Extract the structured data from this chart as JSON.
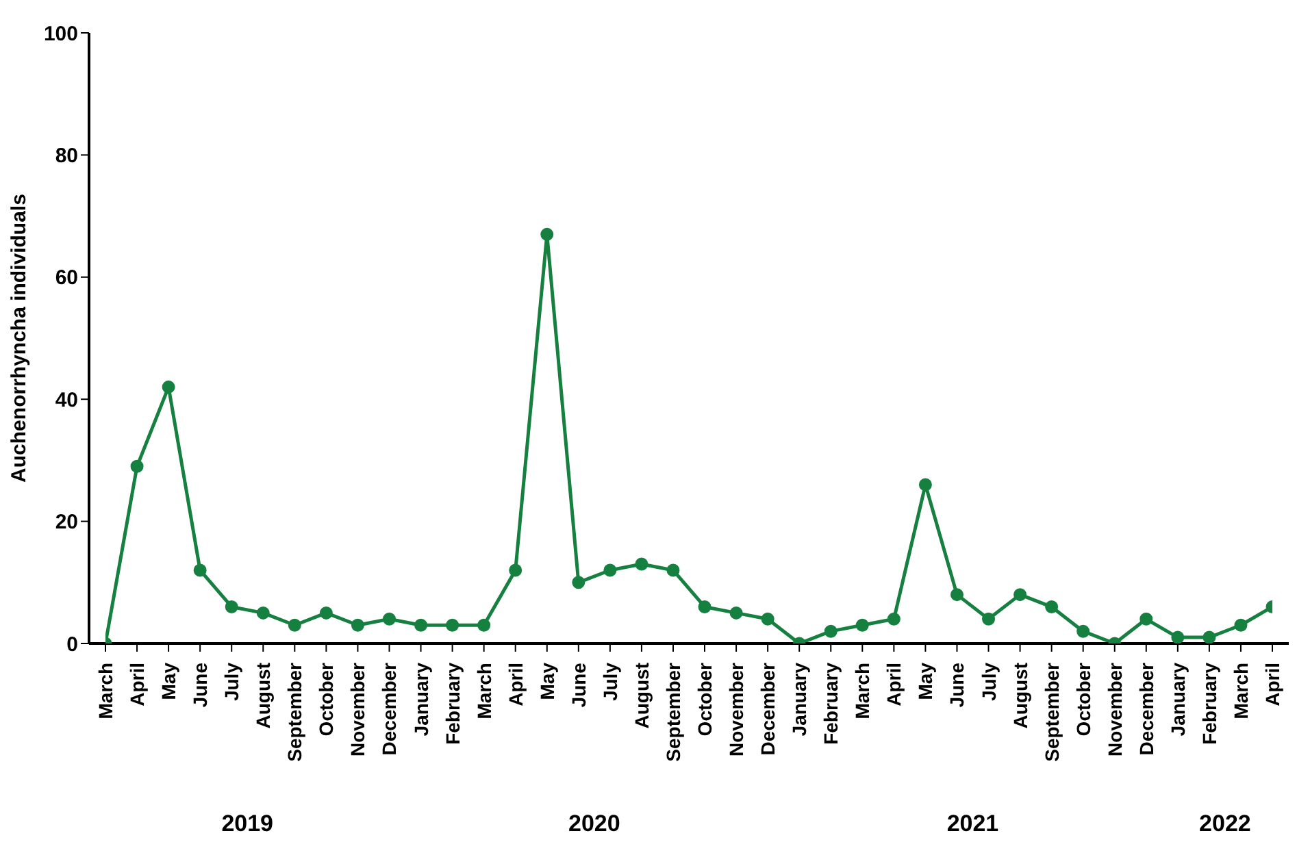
{
  "chart_data": {
    "type": "line",
    "ylabel": "Auchenorrhyncha individuals",
    "categories": [
      "March",
      "April",
      "May",
      "June",
      "July",
      "August",
      "September",
      "October",
      "November",
      "December",
      "January",
      "February",
      "March",
      "April",
      "May",
      "June",
      "July",
      "August",
      "September",
      "October",
      "November",
      "December",
      "January",
      "February",
      "March",
      "April",
      "May",
      "June",
      "July",
      "August",
      "September",
      "October",
      "November",
      "December",
      "January",
      "February",
      "March",
      "April"
    ],
    "series": [
      {
        "color": "#15803f",
        "values": [
          0,
          29,
          42,
          12,
          6,
          5,
          3,
          5,
          3,
          4,
          3,
          3,
          3,
          12,
          67,
          10,
          12,
          13,
          12,
          6,
          5,
          4,
          0,
          2,
          3,
          4,
          26,
          8,
          4,
          8,
          6,
          2,
          0,
          4,
          1,
          1,
          3,
          6
        ]
      }
    ],
    "ylim": [
      0,
      100
    ],
    "yticks": [
      0,
      20,
      40,
      60,
      80,
      100
    ],
    "grid": false,
    "legend": false,
    "marker": "circle",
    "line_style": "solid",
    "annotations": [
      "2019",
      "2020",
      "2021",
      "2022"
    ]
  }
}
